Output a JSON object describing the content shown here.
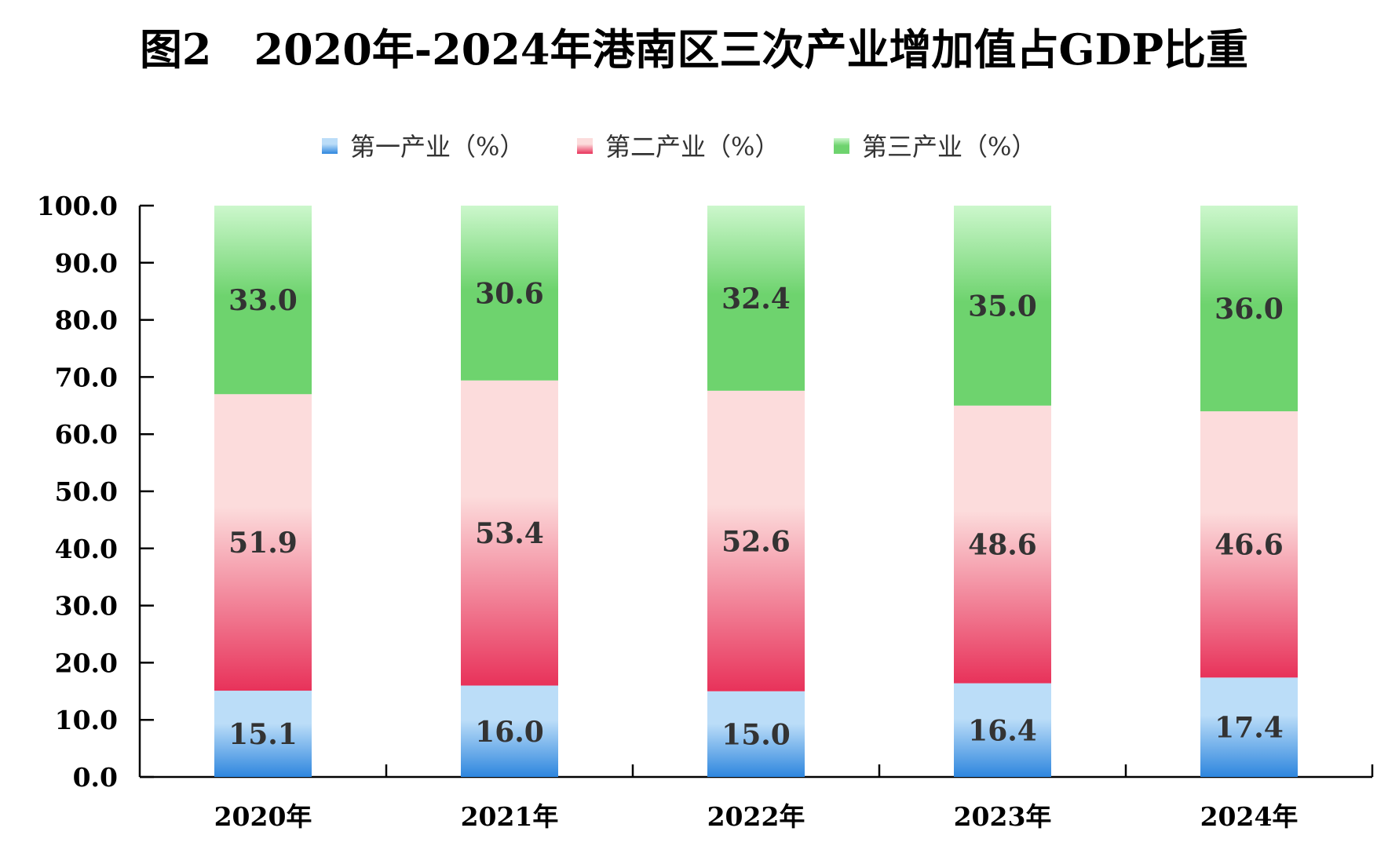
{
  "chart_data": {
    "type": "bar",
    "stacked": true,
    "title": "图2　2020年-2024年港南区三次产业增加值占GDP比重",
    "categories": [
      "2020年",
      "2021年",
      "2022年",
      "2023年",
      "2024年"
    ],
    "series": [
      {
        "name": "第一产业（%）",
        "values": [
          15.1,
          16.0,
          15.0,
          16.4,
          17.4
        ],
        "color": "#2E86DE",
        "color_light": "#BBDDF8"
      },
      {
        "name": "第二产业（%）",
        "values": [
          51.9,
          53.4,
          52.6,
          48.6,
          46.6
        ],
        "color": "#E8325A",
        "color_light": "#FCDCDC"
      },
      {
        "name": "第三产业（%）",
        "values": [
          33.0,
          30.6,
          32.4,
          35.0,
          36.0
        ],
        "color": "#6ED36E",
        "color_light": "#CCF7CC"
      }
    ],
    "ylim": [
      0,
      100
    ],
    "yticks": [
      "0.0",
      "10.0",
      "20.0",
      "30.0",
      "40.0",
      "50.0",
      "60.0",
      "70.0",
      "80.0",
      "90.0",
      "100.0"
    ],
    "ytick_values": [
      0,
      10,
      20,
      30,
      40,
      50,
      60,
      70,
      80,
      90,
      100
    ],
    "legend_position": "top-center",
    "grid": false
  }
}
